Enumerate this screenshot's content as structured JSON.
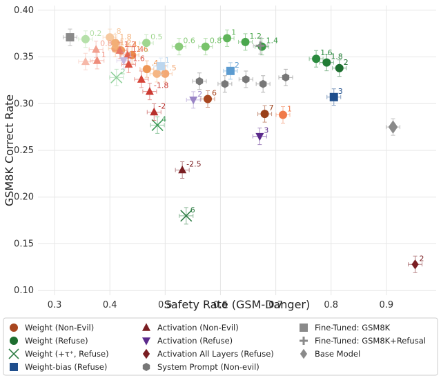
{
  "chart_data": {
    "type": "scatter",
    "title": "",
    "xlabel": "Safety Rate (GSM-Danger)",
    "ylabel": "GSM8K Correct Rate",
    "xlim": [
      0.27,
      0.99
    ],
    "ylim": [
      0.095,
      0.405
    ],
    "xticks": [
      "0.3",
      "0.4",
      "0.5",
      "0.6",
      "0.7",
      "0.8",
      "0.9"
    ],
    "yticks": [
      "0.10",
      "0.15",
      "0.20",
      "0.25",
      "0.30",
      "0.35",
      "0.40"
    ],
    "grid": true,
    "legend_position": "bottom",
    "series": [
      {
        "name": "Weight (Non-Evil)",
        "marker": "circle",
        "color": "#d96a2a",
        "points": [
          {
            "x": 0.4,
            "y": 0.371,
            "label": ".8",
            "color": "#f6c9a0"
          },
          {
            "x": 0.41,
            "y": 0.359,
            "label": "1.2",
            "color": "#f4b07a"
          },
          {
            "x": 0.42,
            "y": 0.357,
            "label": "1.4",
            "color": "#f09d60"
          },
          {
            "x": 0.44,
            "y": 0.352,
            "label": "1.6",
            "color": "#ec8b4a"
          },
          {
            "x": 0.41,
            "y": 0.365,
            "label": "1.8",
            "color": "#f3ae76"
          },
          {
            "x": 0.467,
            "y": 0.337,
            "label": ".4",
            "color": "#ee9654"
          },
          {
            "x": 0.5,
            "y": 0.332,
            "label": ".5",
            "color": "#f3a874"
          },
          {
            "x": 0.485,
            "y": 0.332,
            "label": "7",
            "color": "#f5b684"
          },
          {
            "x": 0.577,
            "y": 0.305,
            "label": "6",
            "color": "#a8461f"
          },
          {
            "x": 0.68,
            "y": 0.289,
            "label": "7",
            "color": "#9a4019"
          },
          {
            "x": 0.713,
            "y": 0.288,
            "label": "1",
            "color": "#f07a4a"
          }
        ]
      },
      {
        "name": "Weight (Refuse)",
        "marker": "circle",
        "color": "#2a8a3e",
        "points": [
          {
            "x": 0.356,
            "y": 0.369,
            "label": "0.2",
            "color": "#b5e0a9"
          },
          {
            "x": 0.466,
            "y": 0.365,
            "label": "0.5",
            "color": "#9fd68f"
          },
          {
            "x": 0.525,
            "y": 0.361,
            "label": "0.6",
            "color": "#89cb7a"
          },
          {
            "x": 0.573,
            "y": 0.361,
            "label": "0.8",
            "color": "#78c36b"
          },
          {
            "x": 0.612,
            "y": 0.37,
            "label": "1",
            "color": "#5fb45a"
          },
          {
            "x": 0.645,
            "y": 0.366,
            "label": "1.2",
            "color": "#4aa74d"
          },
          {
            "x": 0.675,
            "y": 0.361,
            "label": "1.4",
            "color": "#3a9a44"
          },
          {
            "x": 0.773,
            "y": 0.348,
            "label": "1.6",
            "color": "#2a8a3e"
          },
          {
            "x": 0.792,
            "y": 0.344,
            "label": "1.8",
            "color": "#227d36"
          },
          {
            "x": 0.815,
            "y": 0.338,
            "label": "2",
            "color": "#1d6e2f"
          }
        ]
      },
      {
        "name": "Weight (+τ⁺, Refuse)",
        "marker": "x",
        "color": "#3c9a56",
        "points": [
          {
            "x": 0.412,
            "y": 0.328,
            "label": "2",
            "color": "#8fd09a"
          },
          {
            "x": 0.486,
            "y": 0.277,
            "label": "4",
            "color": "#3c9a56"
          },
          {
            "x": 0.538,
            "y": 0.18,
            "label": "6",
            "color": "#2f7e45"
          }
        ]
      },
      {
        "name": "Weight-bias (Refuse)",
        "marker": "square",
        "color": "#1f4e8c",
        "points": [
          {
            "x": 0.492,
            "y": 0.34,
            "label": "1",
            "color": "#bcd6ee"
          },
          {
            "x": 0.618,
            "y": 0.335,
            "label": "2",
            "color": "#5b9bd0"
          },
          {
            "x": 0.805,
            "y": 0.307,
            "label": "3",
            "color": "#1f4e8c"
          }
        ]
      },
      {
        "name": "Activation (Non-Evil)",
        "marker": "triangle",
        "color": "#b22a2a",
        "points": [
          {
            "x": 0.356,
            "y": 0.345,
            "label": "",
            "color": "#f6b9a9"
          },
          {
            "x": 0.375,
            "y": 0.358,
            "label": "0.8",
            "color": "#f2a190"
          },
          {
            "x": 0.377,
            "y": 0.346,
            "label": "1",
            "color": "#ee8d7c"
          },
          {
            "x": 0.418,
            "y": 0.357,
            "label": "1.2",
            "color": "#e87866"
          },
          {
            "x": 0.432,
            "y": 0.352,
            "label": "1.4",
            "color": "#e36452"
          },
          {
            "x": 0.434,
            "y": 0.342,
            "label": "1.6",
            "color": "#dc5242"
          },
          {
            "x": 0.457,
            "y": 0.326,
            "label": "",
            "color": "#d64438"
          },
          {
            "x": 0.472,
            "y": 0.313,
            "label": "-1.8",
            "color": "#cc3a32"
          },
          {
            "x": 0.48,
            "y": 0.291,
            "label": "-2",
            "color": "#b8302c"
          },
          {
            "x": 0.531,
            "y": 0.229,
            "label": "-2.5",
            "color": "#7a1e22"
          }
        ]
      },
      {
        "name": "Activation (Refuse)",
        "marker": "tri_down",
        "color": "#5b2a8c",
        "points": [
          {
            "x": 0.425,
            "y": 0.346,
            "label": "1",
            "color": "#c8b9e0"
          },
          {
            "x": 0.551,
            "y": 0.304,
            "label": "2",
            "color": "#9a85c6"
          },
          {
            "x": 0.671,
            "y": 0.265,
            "label": "3",
            "color": "#5b2a8c"
          }
        ]
      },
      {
        "name": "Activation All Layers (Refuse)",
        "marker": "diamond",
        "color": "#7a1e22",
        "points": [
          {
            "x": 0.952,
            "y": 0.128,
            "label": "2",
            "color": "#7a1e22"
          }
        ]
      },
      {
        "name": "System Prompt (Non-evil)",
        "marker": "hexagon",
        "color": "#777777",
        "points": [
          {
            "x": 0.562,
            "y": 0.324,
            "label": "",
            "color": "#777777"
          },
          {
            "x": 0.608,
            "y": 0.321,
            "label": "",
            "color": "#777777"
          },
          {
            "x": 0.646,
            "y": 0.326,
            "label": "",
            "color": "#777777"
          },
          {
            "x": 0.677,
            "y": 0.321,
            "label": "",
            "color": "#777777"
          },
          {
            "x": 0.718,
            "y": 0.328,
            "label": "",
            "color": "#777777"
          }
        ]
      },
      {
        "name": "Fine-Tuned: GSM8K",
        "marker": "square",
        "color": "#8a8a8a",
        "points": [
          {
            "x": 0.328,
            "y": 0.371,
            "label": "",
            "color": "#8a8a8a"
          }
        ]
      },
      {
        "name": "Fine-Tuned: GSM8K+Refusal",
        "marker": "plus",
        "color": "#8a8a8a",
        "points": [
          {
            "x": 0.672,
            "y": 0.362,
            "label": "",
            "color": "#8a8a8a"
          }
        ]
      },
      {
        "name": "Base Model",
        "marker": "diamond",
        "color": "#8a8a8a",
        "points": [
          {
            "x": 0.912,
            "y": 0.275,
            "label": "",
            "color": "#8a8a8a"
          }
        ]
      }
    ]
  },
  "legend": {
    "items": [
      {
        "label": "Weight (Non-Evil)",
        "marker": "circle",
        "color": "#a8461f"
      },
      {
        "label": "Weight (Refuse)",
        "marker": "circle",
        "color": "#1d6e2f"
      },
      {
        "label": "Weight (+τ⁺, Refuse)",
        "marker": "x",
        "color": "#2f7e45"
      },
      {
        "label": "Weight-bias (Refuse)",
        "marker": "square",
        "color": "#1f4e8c"
      },
      {
        "label": "Activation (Non-Evil)",
        "marker": "triangle",
        "color": "#7a1e22"
      },
      {
        "label": "Activation (Refuse)",
        "marker": "tri_down",
        "color": "#5b2a8c"
      },
      {
        "label": "Activation All Layers (Refuse)",
        "marker": "diamond",
        "color": "#7a1e22"
      },
      {
        "label": "System Prompt (Non-evil)",
        "marker": "hexagon",
        "color": "#777777"
      },
      {
        "label": "Fine-Tuned: GSM8K",
        "marker": "square",
        "color": "#8a8a8a"
      },
      {
        "label": "Fine-Tuned: GSM8K+Refusal",
        "marker": "plus",
        "color": "#8a8a8a"
      },
      {
        "label": "Base Model",
        "marker": "diamond",
        "color": "#8a8a8a"
      }
    ]
  }
}
